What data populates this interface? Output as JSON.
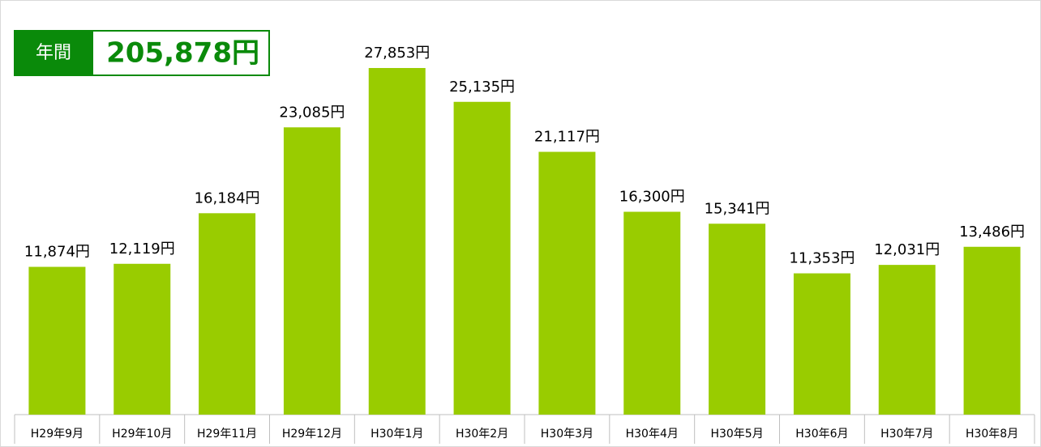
{
  "chart_data": {
    "type": "bar",
    "summary": {
      "label": "年間",
      "value": "205,878円"
    },
    "categories": [
      "H29年9月",
      "H29年10月",
      "H29年11月",
      "H29年12月",
      "H30年1月",
      "H30年2月",
      "H30年3月",
      "H30年4月",
      "H30年5月",
      "H30年6月",
      "H30年7月",
      "H30年8月"
    ],
    "values": [
      11874,
      12119,
      16184,
      23085,
      27853,
      25135,
      21117,
      16300,
      15341,
      11353,
      12031,
      13486
    ],
    "value_labels": [
      "11,874円",
      "12,119円",
      "16,184円",
      "23,085円",
      "27,853円",
      "25,135円",
      "21,117円",
      "16,300円",
      "15,341円",
      "11,353円",
      "12,031円",
      "13,486円"
    ],
    "color": "#99cc00",
    "ylim": [
      0,
      30000
    ]
  }
}
